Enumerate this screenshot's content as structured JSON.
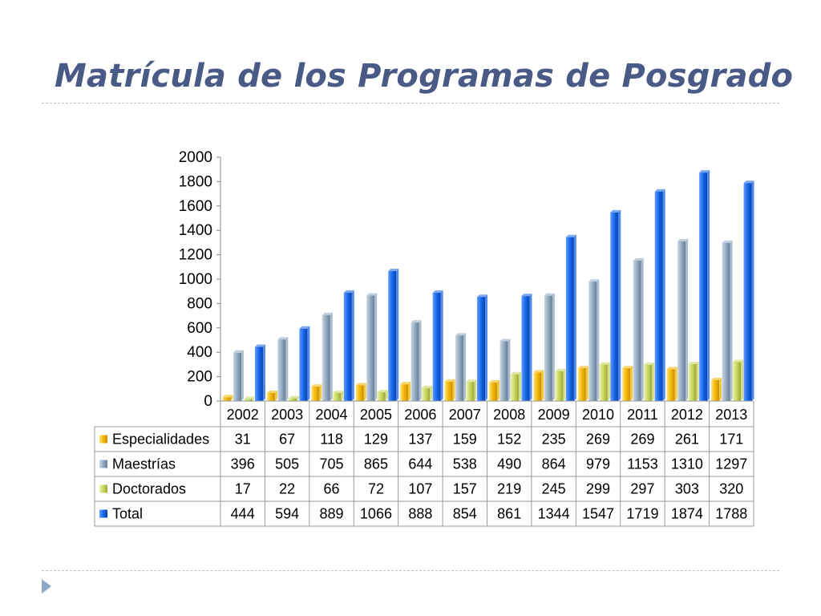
{
  "slide": {
    "title": "Matrícula de los Programas de Posgrado"
  },
  "colors": {
    "title": "#4a5a86",
    "rule": "#b7c3cf",
    "nav_arrow": "#8fa8c8"
  },
  "icons": {
    "nav": "triangle-right-icon"
  },
  "chart_data": {
    "type": "bar",
    "title": "",
    "xlabel": "",
    "ylabel": "",
    "ylim": [
      0,
      2000
    ],
    "yticks": [
      0,
      200,
      400,
      600,
      800,
      1000,
      1200,
      1400,
      1600,
      1800,
      2000
    ],
    "grid": false,
    "legend_placement": "data-table-left",
    "categories": [
      "2002",
      "2003",
      "2004",
      "2005",
      "2006",
      "2007",
      "2008",
      "2009",
      "2010",
      "2011",
      "2012",
      "2013"
    ],
    "series": [
      {
        "name": "Especialidades",
        "color": "#f0b400",
        "values": [
          31,
          67,
          118,
          129,
          137,
          159,
          152,
          235,
          269,
          269,
          261,
          171
        ]
      },
      {
        "name": "Maestrías",
        "color": "#8ea6bd",
        "values": [
          396,
          505,
          705,
          865,
          644,
          538,
          490,
          864,
          979,
          1153,
          1310,
          1297
        ]
      },
      {
        "name": "Doctorados",
        "color": "#c6d35a",
        "values": [
          17,
          22,
          66,
          72,
          107,
          157,
          219,
          245,
          299,
          297,
          303,
          320
        ]
      },
      {
        "name": "Total",
        "color": "#1463e6",
        "values": [
          444,
          594,
          889,
          1066,
          888,
          854,
          861,
          1344,
          1547,
          1719,
          1874,
          1788
        ]
      }
    ]
  }
}
